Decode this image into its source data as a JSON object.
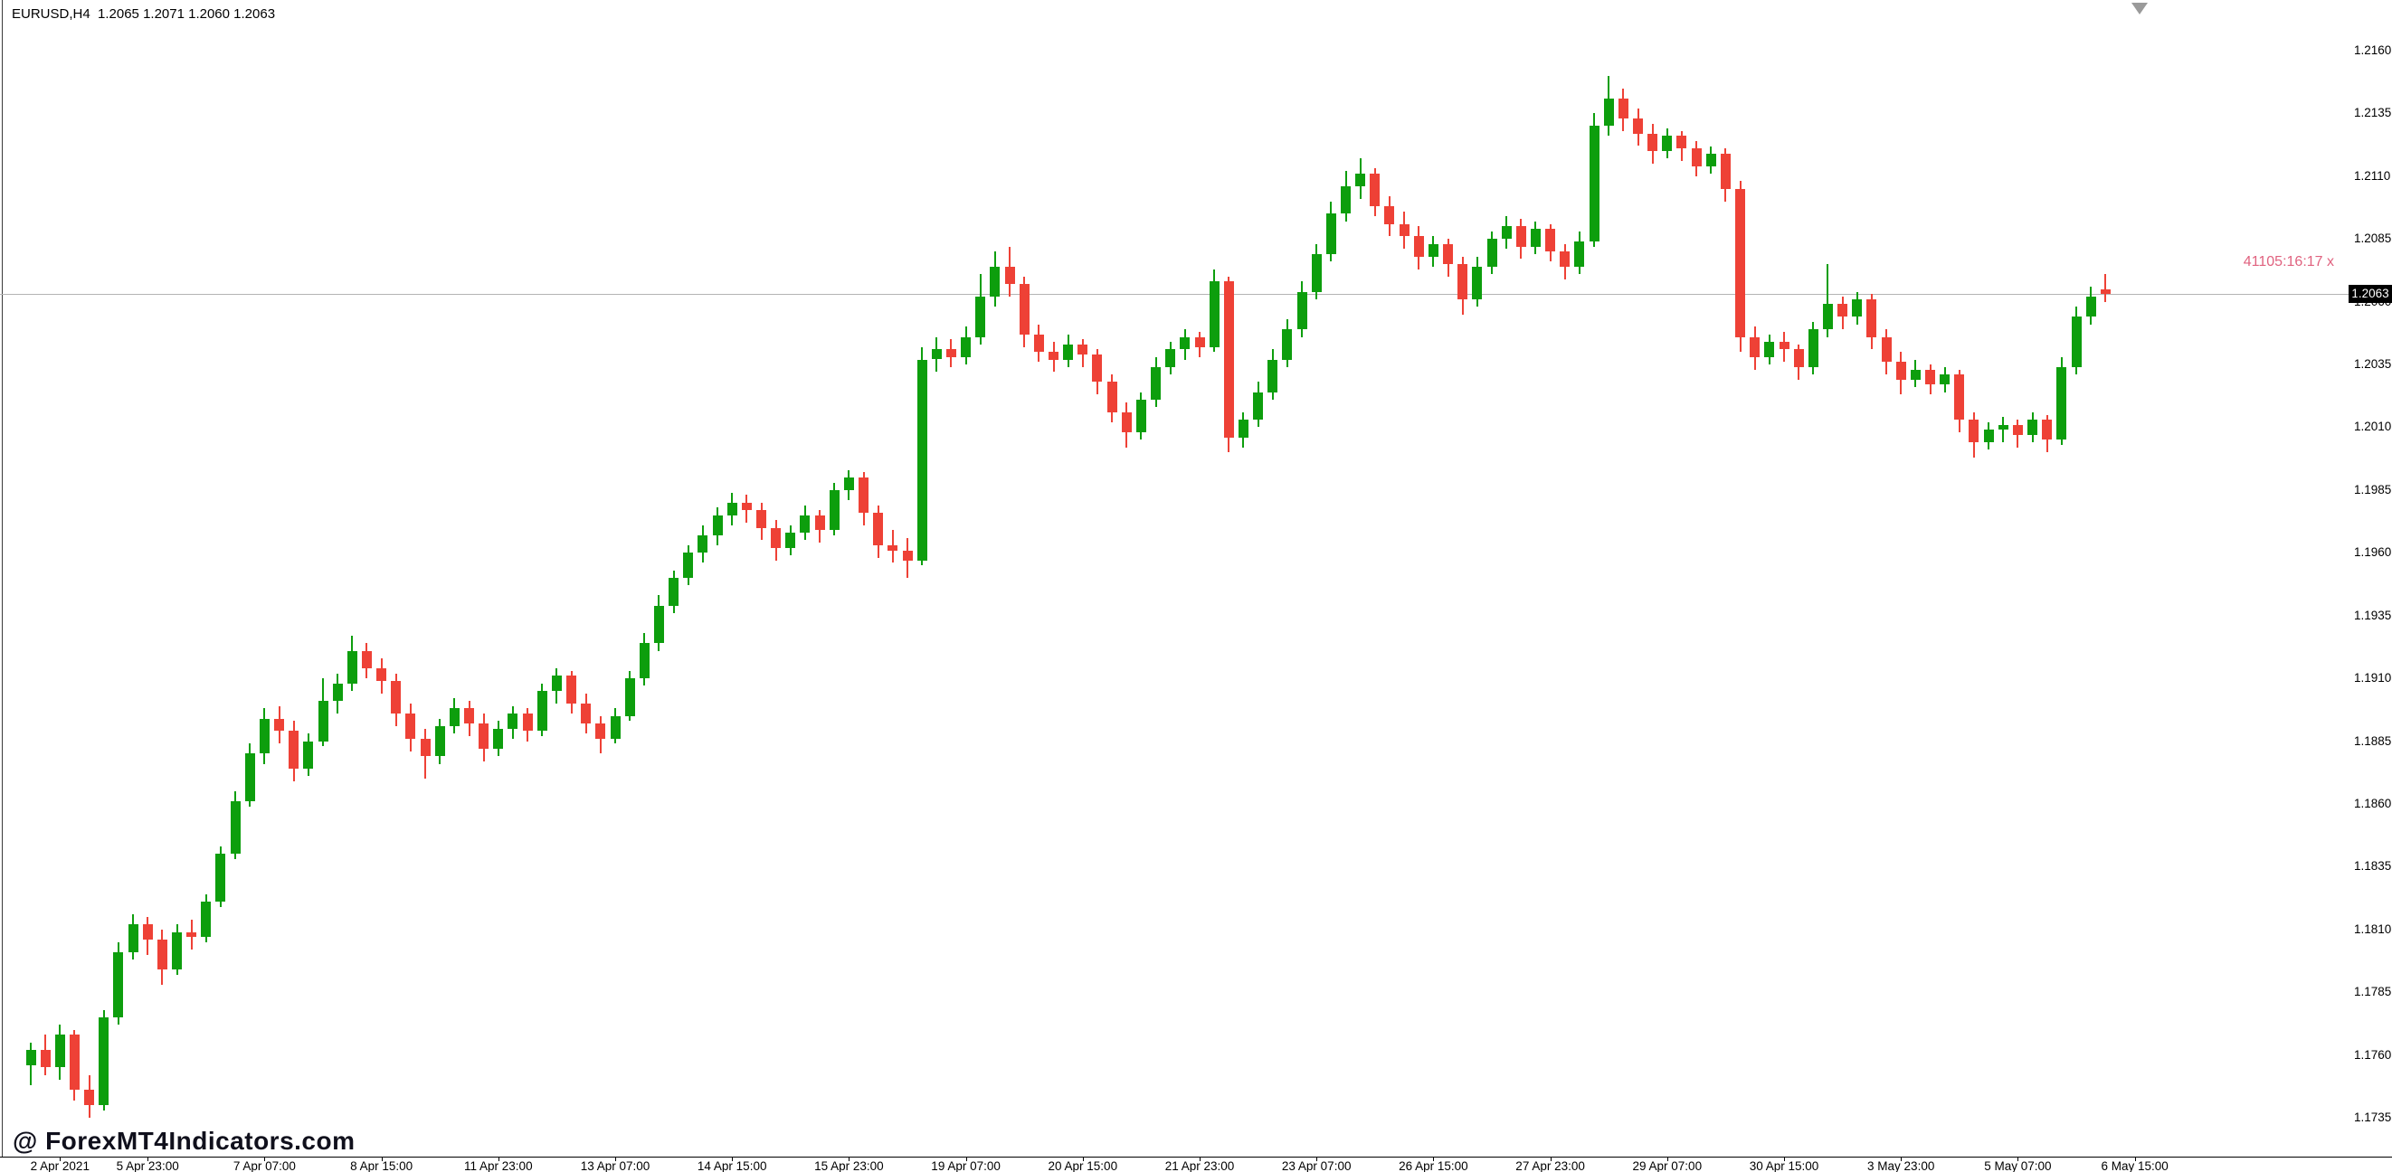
{
  "header": {
    "text": "EURUSD,H4  1.2065 1.2071 1.2060 1.2063"
  },
  "overlay": {
    "timer_text": "41105:16:17 x",
    "timer_color": "#e0627f",
    "current_price_label": "1.2063"
  },
  "watermark": "@ ForexMT4Indicators.com",
  "chart_data": {
    "type": "candlestick",
    "symbol": "EURUSD",
    "timeframe": "H4",
    "title": "EURUSD,H4",
    "last_ohlc": {
      "open": 1.2065,
      "high": 1.2071,
      "low": 1.206,
      "close": 1.2063
    },
    "current_price": 1.2063,
    "grid": "off",
    "legend_position": "none",
    "colors": {
      "up": "#0d9e0d",
      "down": "#ee4136",
      "price_line": "#b4b4b4",
      "price_tag_bg": "#000000",
      "price_tag_text": "#ffffff"
    },
    "y_axis": {
      "min": 1.1735,
      "max": 1.216,
      "step": 0.0025,
      "ticks": [
        1.216,
        1.2135,
        1.211,
        1.2085,
        1.206,
        1.2035,
        1.201,
        1.1985,
        1.196,
        1.1935,
        1.191,
        1.1885,
        1.186,
        1.1835,
        1.181,
        1.1785,
        1.176,
        1.1735
      ]
    },
    "x_axis": {
      "labels": [
        {
          "text": "2 Apr 2021",
          "idx": 2
        },
        {
          "text": "5 Apr 23:00",
          "idx": 8
        },
        {
          "text": "7 Apr 07:00",
          "idx": 16
        },
        {
          "text": "8 Apr 15:00",
          "idx": 24
        },
        {
          "text": "11 Apr 23:00",
          "idx": 32
        },
        {
          "text": "13 Apr 07:00",
          "idx": 40
        },
        {
          "text": "14 Apr 15:00",
          "idx": 48
        },
        {
          "text": "15 Apr 23:00",
          "idx": 56
        },
        {
          "text": "19 Apr 07:00",
          "idx": 64
        },
        {
          "text": "20 Apr 15:00",
          "idx": 72
        },
        {
          "text": "21 Apr 23:00",
          "idx": 80
        },
        {
          "text": "23 Apr 07:00",
          "idx": 88
        },
        {
          "text": "26 Apr 15:00",
          "idx": 96
        },
        {
          "text": "27 Apr 23:00",
          "idx": 104
        },
        {
          "text": "29 Apr 07:00",
          "idx": 112
        },
        {
          "text": "30 Apr 15:00",
          "idx": 120
        },
        {
          "text": "3 May 23:00",
          "idx": 128
        },
        {
          "text": "5 May 07:00",
          "idx": 136
        },
        {
          "text": "6 May 15:00",
          "idx": 144
        }
      ]
    },
    "candles": [
      [
        1.1756,
        1.1765,
        1.1748,
        1.1762
      ],
      [
        1.1762,
        1.1768,
        1.1752,
        1.1755
      ],
      [
        1.1755,
        1.1772,
        1.175,
        1.1768
      ],
      [
        1.1768,
        1.177,
        1.1742,
        1.1746
      ],
      [
        1.1746,
        1.1752,
        1.1735,
        1.174
      ],
      [
        1.174,
        1.1778,
        1.1738,
        1.1775
      ],
      [
        1.1775,
        1.1805,
        1.1772,
        1.1801
      ],
      [
        1.1801,
        1.1816,
        1.1798,
        1.1812
      ],
      [
        1.1812,
        1.1815,
        1.18,
        1.1806
      ],
      [
        1.1806,
        1.181,
        1.1788,
        1.1794
      ],
      [
        1.1794,
        1.1812,
        1.1792,
        1.1809
      ],
      [
        1.1809,
        1.1814,
        1.1802,
        1.1807
      ],
      [
        1.1807,
        1.1824,
        1.1805,
        1.1821
      ],
      [
        1.1821,
        1.1843,
        1.1819,
        1.184
      ],
      [
        1.184,
        1.1865,
        1.1838,
        1.1861
      ],
      [
        1.1861,
        1.1884,
        1.1859,
        1.188
      ],
      [
        1.188,
        1.1898,
        1.1876,
        1.1894
      ],
      [
        1.1894,
        1.1899,
        1.1884,
        1.1889
      ],
      [
        1.1889,
        1.1893,
        1.1869,
        1.1874
      ],
      [
        1.1874,
        1.1888,
        1.1871,
        1.1885
      ],
      [
        1.1885,
        1.191,
        1.1883,
        1.1901
      ],
      [
        1.1901,
        1.1912,
        1.1896,
        1.1908
      ],
      [
        1.1908,
        1.1927,
        1.1905,
        1.1921
      ],
      [
        1.1921,
        1.1924,
        1.191,
        1.1914
      ],
      [
        1.1914,
        1.1918,
        1.1904,
        1.1909
      ],
      [
        1.1909,
        1.1912,
        1.1891,
        1.1896
      ],
      [
        1.1896,
        1.19,
        1.1881,
        1.1886
      ],
      [
        1.1886,
        1.189,
        1.187,
        1.1879
      ],
      [
        1.1879,
        1.1894,
        1.1876,
        1.1891
      ],
      [
        1.1891,
        1.1902,
        1.1888,
        1.1898
      ],
      [
        1.1898,
        1.1901,
        1.1887,
        1.1892
      ],
      [
        1.1892,
        1.1896,
        1.1877,
        1.1882
      ],
      [
        1.1882,
        1.1893,
        1.1879,
        1.189
      ],
      [
        1.189,
        1.1899,
        1.1886,
        1.1896
      ],
      [
        1.1896,
        1.1898,
        1.1885,
        1.1889
      ],
      [
        1.1889,
        1.1908,
        1.1887,
        1.1905
      ],
      [
        1.1905,
        1.1914,
        1.19,
        1.1911
      ],
      [
        1.1911,
        1.1913,
        1.1896,
        1.19
      ],
      [
        1.19,
        1.1904,
        1.1888,
        1.1892
      ],
      [
        1.1892,
        1.1895,
        1.188,
        1.1886
      ],
      [
        1.1886,
        1.1898,
        1.1884,
        1.1895
      ],
      [
        1.1895,
        1.1913,
        1.1893,
        1.191
      ],
      [
        1.191,
        1.1928,
        1.1907,
        1.1924
      ],
      [
        1.1924,
        1.1943,
        1.1921,
        1.1939
      ],
      [
        1.1939,
        1.1953,
        1.1936,
        1.195
      ],
      [
        1.195,
        1.1963,
        1.1947,
        1.196
      ],
      [
        1.196,
        1.1971,
        1.1956,
        1.1967
      ],
      [
        1.1967,
        1.1978,
        1.1963,
        1.1975
      ],
      [
        1.1975,
        1.1984,
        1.1971,
        1.198
      ],
      [
        1.198,
        1.1983,
        1.1972,
        1.1977
      ],
      [
        1.1977,
        1.198,
        1.1965,
        1.197
      ],
      [
        1.197,
        1.1973,
        1.1957,
        1.1962
      ],
      [
        1.1962,
        1.1971,
        1.1959,
        1.1968
      ],
      [
        1.1968,
        1.1979,
        1.1965,
        1.1975
      ],
      [
        1.1975,
        1.1977,
        1.1964,
        1.1969
      ],
      [
        1.1969,
        1.1988,
        1.1967,
        1.1985
      ],
      [
        1.1985,
        1.1993,
        1.1981,
        1.199
      ],
      [
        1.199,
        1.1992,
        1.1971,
        1.1976
      ],
      [
        1.1976,
        1.1979,
        1.1958,
        1.1963
      ],
      [
        1.1963,
        1.1969,
        1.1956,
        1.1961
      ],
      [
        1.1961,
        1.1966,
        1.195,
        1.1957
      ],
      [
        1.1957,
        1.2042,
        1.1955,
        1.2037
      ],
      [
        1.2037,
        1.2046,
        1.2032,
        1.2041
      ],
      [
        1.2041,
        1.2045,
        1.2034,
        1.2038
      ],
      [
        1.2038,
        1.205,
        1.2035,
        1.2046
      ],
      [
        1.2046,
        1.2071,
        1.2043,
        1.2062
      ],
      [
        1.2062,
        1.208,
        1.2058,
        1.2074
      ],
      [
        1.2074,
        1.2082,
        1.2062,
        1.2067
      ],
      [
        1.2067,
        1.207,
        1.2042,
        1.2047
      ],
      [
        1.2047,
        1.2051,
        1.2036,
        1.204
      ],
      [
        1.204,
        1.2044,
        1.2032,
        1.2037
      ],
      [
        1.2037,
        1.2047,
        1.2034,
        1.2043
      ],
      [
        1.2043,
        1.2045,
        1.2034,
        1.2039
      ],
      [
        1.2039,
        1.2041,
        1.2023,
        1.2028
      ],
      [
        1.2028,
        1.2031,
        1.2012,
        1.2016
      ],
      [
        1.2016,
        1.202,
        1.2002,
        1.2008
      ],
      [
        1.2008,
        1.2024,
        1.2005,
        1.2021
      ],
      [
        1.2021,
        1.2038,
        1.2018,
        1.2034
      ],
      [
        1.2034,
        1.2044,
        1.2031,
        1.2041
      ],
      [
        1.2041,
        1.2049,
        1.2037,
        1.2046
      ],
      [
        1.2046,
        1.2048,
        1.2038,
        1.2042
      ],
      [
        1.2042,
        1.2073,
        1.204,
        1.2068
      ],
      [
        1.2068,
        1.207,
        1.2,
        1.2006
      ],
      [
        1.2006,
        1.2016,
        1.2002,
        1.2013
      ],
      [
        1.2013,
        1.2028,
        1.201,
        1.2024
      ],
      [
        1.2024,
        1.2041,
        1.2021,
        1.2037
      ],
      [
        1.2037,
        1.2053,
        1.2034,
        1.2049
      ],
      [
        1.2049,
        1.2068,
        1.2046,
        1.2064
      ],
      [
        1.2064,
        1.2083,
        1.2061,
        1.2079
      ],
      [
        1.2079,
        1.21,
        1.2076,
        1.2095
      ],
      [
        1.2095,
        1.2112,
        1.2092,
        1.2106
      ],
      [
        1.2106,
        1.2117,
        1.2101,
        1.2111
      ],
      [
        1.2111,
        1.2113,
        1.2094,
        1.2098
      ],
      [
        1.2098,
        1.2102,
        1.2086,
        1.2091
      ],
      [
        1.2091,
        1.2096,
        1.2081,
        1.2086
      ],
      [
        1.2086,
        1.209,
        1.2073,
        1.2078
      ],
      [
        1.2078,
        1.2086,
        1.2074,
        1.2083
      ],
      [
        1.2083,
        1.2085,
        1.207,
        1.2075
      ],
      [
        1.2075,
        1.2078,
        1.2055,
        1.2061
      ],
      [
        1.2061,
        1.2078,
        1.2058,
        1.2074
      ],
      [
        1.2074,
        1.2088,
        1.2071,
        1.2085
      ],
      [
        1.2085,
        1.2094,
        1.2081,
        1.209
      ],
      [
        1.209,
        1.2093,
        1.2077,
        1.2082
      ],
      [
        1.2082,
        1.2092,
        1.2079,
        1.2089
      ],
      [
        1.2089,
        1.2091,
        1.2076,
        1.208
      ],
      [
        1.208,
        1.2083,
        1.2069,
        1.2074
      ],
      [
        1.2074,
        1.2088,
        1.2071,
        1.2084
      ],
      [
        1.2084,
        1.2135,
        1.2082,
        1.213
      ],
      [
        1.213,
        1.215,
        1.2126,
        1.2141
      ],
      [
        1.2141,
        1.2145,
        1.2128,
        1.2133
      ],
      [
        1.2133,
        1.2137,
        1.2122,
        1.2127
      ],
      [
        1.2127,
        1.2131,
        1.2115,
        1.212
      ],
      [
        1.212,
        1.2129,
        1.2117,
        1.2126
      ],
      [
        1.2126,
        1.2128,
        1.2116,
        1.2121
      ],
      [
        1.2121,
        1.2124,
        1.211,
        1.2114
      ],
      [
        1.2114,
        1.2122,
        1.2111,
        1.2119
      ],
      [
        1.2119,
        1.2121,
        1.21,
        1.2105
      ],
      [
        1.2105,
        1.2108,
        1.204,
        1.2046
      ],
      [
        1.2046,
        1.205,
        1.2033,
        1.2038
      ],
      [
        1.2038,
        1.2047,
        1.2035,
        1.2044
      ],
      [
        1.2044,
        1.2048,
        1.2036,
        1.2041
      ],
      [
        1.2041,
        1.2043,
        1.2029,
        1.2034
      ],
      [
        1.2034,
        1.2052,
        1.2031,
        1.2049
      ],
      [
        1.2049,
        1.2075,
        1.2046,
        1.2059
      ],
      [
        1.2059,
        1.2062,
        1.2049,
        1.2054
      ],
      [
        1.2054,
        1.2064,
        1.2051,
        1.2061
      ],
      [
        1.2061,
        1.2063,
        1.2041,
        1.2046
      ],
      [
        1.2046,
        1.2049,
        1.2031,
        1.2036
      ],
      [
        1.2036,
        1.204,
        1.2023,
        1.2029
      ],
      [
        1.2029,
        1.2037,
        1.2026,
        1.2033
      ],
      [
        1.2033,
        1.2035,
        1.2023,
        1.2027
      ],
      [
        1.2027,
        1.2034,
        1.2024,
        1.2031
      ],
      [
        1.2031,
        1.2033,
        1.2008,
        1.2013
      ],
      [
        1.2013,
        1.2016,
        1.1998,
        1.2004
      ],
      [
        1.2004,
        1.2012,
        1.2001,
        1.2009
      ],
      [
        1.2009,
        1.2014,
        1.2004,
        1.2011
      ],
      [
        1.2011,
        1.2013,
        1.2002,
        1.2007
      ],
      [
        1.2007,
        1.2016,
        1.2004,
        1.2013
      ],
      [
        1.2013,
        1.2015,
        1.2,
        1.2005
      ],
      [
        1.2005,
        1.2038,
        1.2003,
        1.2034
      ],
      [
        1.2034,
        1.2058,
        1.2031,
        1.2054
      ],
      [
        1.2054,
        1.2066,
        1.2051,
        1.2062
      ],
      [
        1.2065,
        1.2071,
        1.206,
        1.2063
      ]
    ]
  }
}
